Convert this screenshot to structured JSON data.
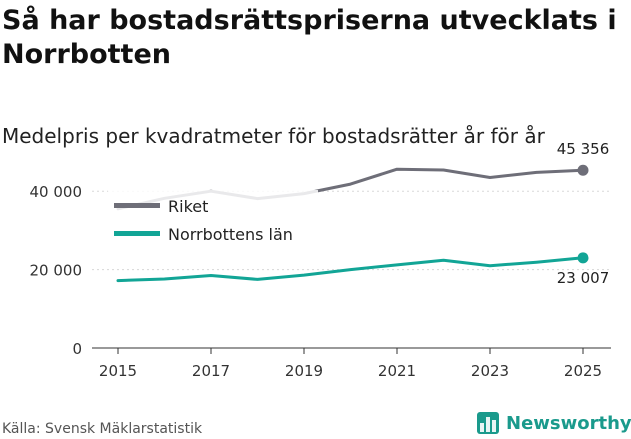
{
  "title": "Så har bostadsrättspriserna utvecklats i Norrbotten",
  "subtitle": "Medelpris per kvadratmeter för bostadsrätter år för år",
  "source": "Källa: Svensk Mäklarstatistik",
  "brand": "Newsworthy",
  "chart_data": {
    "type": "line",
    "x": [
      2015,
      2016,
      2017,
      2018,
      2019,
      2020,
      2021,
      2022,
      2023,
      2024,
      2025
    ],
    "x_ticks": [
      2015,
      2017,
      2019,
      2021,
      2023,
      2025
    ],
    "y_ticks": [
      0,
      20000,
      40000
    ],
    "y_tick_labels": [
      "0",
      "20 000",
      "40 000"
    ],
    "ylim": [
      0,
      50000
    ],
    "series": [
      {
        "name": "Riket",
        "color": "#6e6e78",
        "values": [
          35500,
          38200,
          40000,
          38100,
          39400,
          41800,
          45600,
          45400,
          43500,
          44800,
          45356
        ],
        "end_label": "45 356"
      },
      {
        "name": "Norrbottens län",
        "color": "#12a596",
        "values": [
          17200,
          17600,
          18500,
          17500,
          18600,
          20000,
          21200,
          22400,
          21000,
          21900,
          23007
        ],
        "end_label": "23 007"
      }
    ],
    "legend_position": "top-left"
  }
}
